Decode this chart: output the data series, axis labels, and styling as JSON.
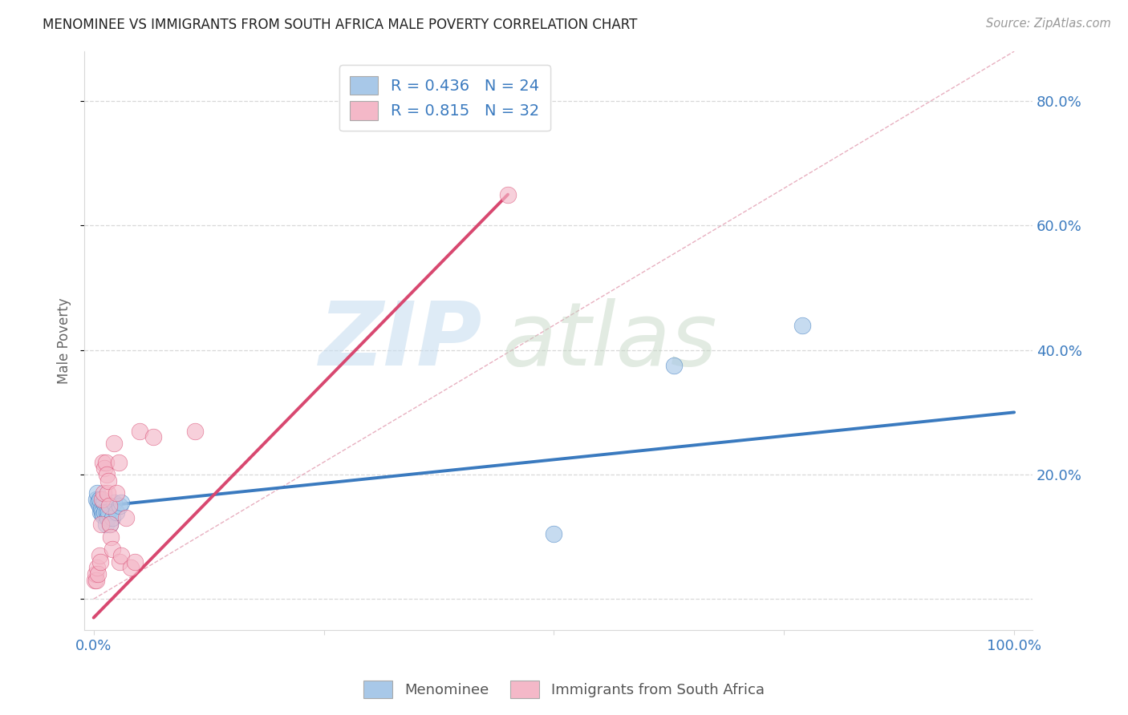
{
  "title": "MENOMINEE VS IMMIGRANTS FROM SOUTH AFRICA MALE POVERTY CORRELATION CHART",
  "source": "Source: ZipAtlas.com",
  "ylabel": "Male Poverty",
  "xlim": [
    -0.01,
    1.02
  ],
  "ylim": [
    -0.05,
    0.88
  ],
  "x_ticks": [
    0.0,
    0.25,
    0.5,
    0.75,
    1.0
  ],
  "x_tick_labels": [
    "0.0%",
    "",
    "",
    "",
    "100.0%"
  ],
  "y_ticks": [
    0.0,
    0.2,
    0.4,
    0.6,
    0.8
  ],
  "y_tick_labels": [
    "",
    "20.0%",
    "40.0%",
    "60.0%",
    "80.0%"
  ],
  "legend1_label": "R = 0.436   N = 24",
  "legend2_label": "R = 0.815   N = 32",
  "legend_bottom1": "Menominee",
  "legend_bottom2": "Immigrants from South Africa",
  "blue_color": "#a8c8e8",
  "pink_color": "#f4b8c8",
  "blue_line_color": "#3a7abf",
  "pink_line_color": "#d84870",
  "blue_scatter_x": [
    0.003,
    0.004,
    0.005,
    0.006,
    0.006,
    0.007,
    0.008,
    0.009,
    0.01,
    0.011,
    0.012,
    0.013,
    0.014,
    0.015,
    0.016,
    0.018,
    0.02,
    0.022,
    0.025,
    0.028,
    0.03,
    0.5,
    0.63,
    0.77
  ],
  "blue_scatter_y": [
    0.16,
    0.17,
    0.155,
    0.15,
    0.16,
    0.14,
    0.145,
    0.14,
    0.135,
    0.155,
    0.14,
    0.12,
    0.14,
    0.13,
    0.14,
    0.12,
    0.13,
    0.155,
    0.14,
    0.15,
    0.155,
    0.105,
    0.375,
    0.44
  ],
  "pink_scatter_x": [
    0.001,
    0.002,
    0.003,
    0.004,
    0.005,
    0.006,
    0.007,
    0.008,
    0.009,
    0.01,
    0.011,
    0.012,
    0.013,
    0.014,
    0.015,
    0.016,
    0.017,
    0.018,
    0.019,
    0.02,
    0.022,
    0.025,
    0.027,
    0.028,
    0.03,
    0.035,
    0.04,
    0.045,
    0.05,
    0.065,
    0.11,
    0.45
  ],
  "pink_scatter_y": [
    0.03,
    0.04,
    0.03,
    0.05,
    0.04,
    0.07,
    0.06,
    0.12,
    0.16,
    0.22,
    0.17,
    0.21,
    0.22,
    0.2,
    0.17,
    0.19,
    0.15,
    0.12,
    0.1,
    0.08,
    0.25,
    0.17,
    0.22,
    0.06,
    0.07,
    0.13,
    0.05,
    0.06,
    0.27,
    0.26,
    0.27,
    0.65
  ],
  "blue_line_x": [
    0.0,
    1.0
  ],
  "blue_line_y": [
    0.148,
    0.3
  ],
  "pink_line_x": [
    0.0,
    0.45
  ],
  "pink_line_y": [
    -0.03,
    0.65
  ],
  "diag_line_x": [
    0.0,
    1.0
  ],
  "diag_line_y": [
    0.0,
    0.88
  ],
  "grid_color": "#d8d8d8",
  "diag_color": "#e8b0c0"
}
